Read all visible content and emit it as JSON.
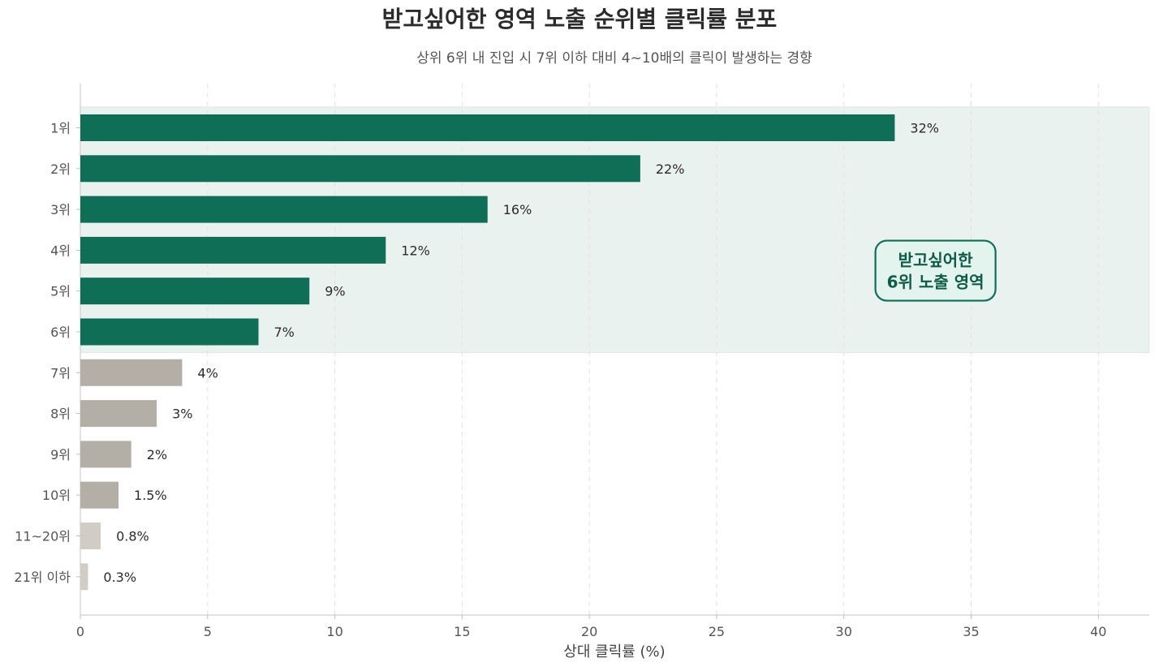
{
  "chart_data": {
    "type": "bar",
    "orientation": "horizontal",
    "title": "받고싶어한 영역 노출 순위별 클릭률 분포",
    "subtitle": "상위 6위 내 진입 시 7위 이하 대비 4~10배의 클릭이 발생하는 경향",
    "xlabel": "상대 클릭률 (%)",
    "xlim": [
      0,
      42
    ],
    "xticks": [
      0,
      5,
      10,
      15,
      20,
      25,
      30,
      35,
      40
    ],
    "grid": "x-dashed",
    "categories": [
      "1위",
      "2위",
      "3위",
      "4위",
      "5위",
      "6위",
      "7위",
      "8위",
      "9위",
      "10위",
      "11~20위",
      "21위 이하"
    ],
    "values": [
      32,
      22,
      16,
      12,
      9,
      7,
      4,
      3,
      2,
      1.5,
      0.8,
      0.3
    ],
    "value_labels": [
      "32%",
      "22%",
      "16%",
      "12%",
      "9%",
      "7%",
      "4%",
      "3%",
      "2%",
      "1.5%",
      "0.8%",
      "0.3%"
    ],
    "bar_groups": [
      "top",
      "top",
      "top",
      "top",
      "top",
      "top",
      "mid",
      "mid",
      "mid",
      "mid",
      "low",
      "low"
    ],
    "colors": {
      "top": "#0e6e56",
      "mid": "#b3afa7",
      "low": "#d1cdc5",
      "highlight_band": "#eaf2ef",
      "annotation_fill": "#e3f3ed",
      "annotation_border": "#0e6e56"
    },
    "highlight_range": [
      "1위",
      "6위"
    ],
    "annotation": {
      "lines": [
        "받고싶어한",
        "6위 노출 영역"
      ],
      "x": 33.6,
      "y_category": "3.5"
    }
  }
}
